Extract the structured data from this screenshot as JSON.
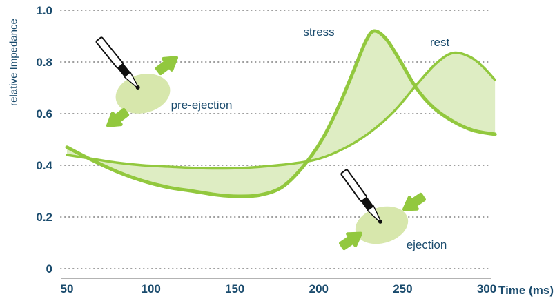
{
  "chart_data": {
    "type": "area",
    "title": "",
    "ylabel": "relative Impedance",
    "xlabel": "Time (ms)",
    "x_ticks": [
      50,
      100,
      150,
      200,
      250,
      300
    ],
    "y_ticks": [
      0,
      0.2,
      0.4,
      0.6,
      0.8,
      1.0
    ],
    "y_tick_labels": [
      "0",
      "0.2",
      "0.4",
      "0.6",
      "0.8",
      "1.0"
    ],
    "xlim": [
      47,
      307
    ],
    "ylim": [
      0,
      1.0
    ],
    "grid": "horizontal-dotted",
    "legend": "inline-curve-labels",
    "series": [
      {
        "name": "stress",
        "x": [
          50,
          65,
          80,
          95,
          110,
          125,
          140,
          152,
          165,
          178,
          190,
          202,
          212,
          221,
          228,
          233,
          240,
          248,
          258,
          268,
          280,
          292,
          305
        ],
        "y": [
          0.47,
          0.42,
          0.375,
          0.34,
          0.315,
          0.3,
          0.285,
          0.28,
          0.285,
          0.315,
          0.39,
          0.5,
          0.63,
          0.77,
          0.88,
          0.92,
          0.89,
          0.81,
          0.7,
          0.625,
          0.57,
          0.535,
          0.52
        ]
      },
      {
        "name": "rest",
        "x": [
          50,
          65,
          80,
          95,
          110,
          125,
          140,
          155,
          170,
          185,
          200,
          215,
          230,
          245,
          258,
          270,
          280,
          290,
          298,
          305
        ],
        "y": [
          0.44,
          0.425,
          0.41,
          0.4,
          0.395,
          0.39,
          0.388,
          0.39,
          0.397,
          0.407,
          0.425,
          0.465,
          0.525,
          0.61,
          0.71,
          0.795,
          0.835,
          0.82,
          0.78,
          0.73
        ]
      }
    ],
    "annotations": [
      {
        "label": "pre-ejection",
        "icon": "pacing-lead-icon",
        "arrows": "outward"
      },
      {
        "label": "ejection",
        "icon": "pacing-lead-icon",
        "arrows": "inward"
      }
    ]
  },
  "colors": {
    "curve": "#92C83E",
    "area": "#DEEDC3",
    "ellipse": "#D7E7AC",
    "text": "#1A4B6D",
    "grid": "#9B9B9B",
    "axis": "#B3B3B3",
    "lead_dark": "#111111",
    "lead_body": "#FFFFFF"
  }
}
